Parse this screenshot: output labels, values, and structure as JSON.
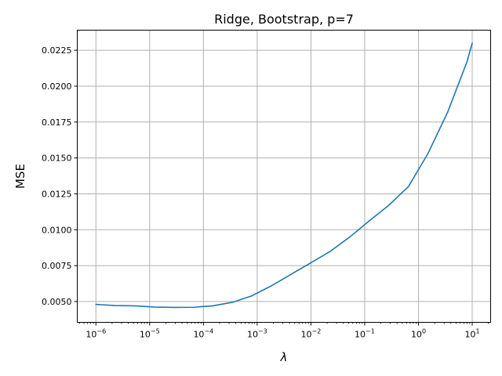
{
  "chart_data": {
    "type": "line",
    "title": "Ridge, Bootstrap, p=7",
    "xlabel": "λ",
    "ylabel": "MSE",
    "xscale": "log",
    "xlim": [
      4.5e-07,
      22
    ],
    "ylim": [
      0.00355,
      0.0239
    ],
    "grid": true,
    "x_ticks": [
      {
        "value": 1e-06,
        "base": "10",
        "exp": "−6"
      },
      {
        "value": 1e-05,
        "base": "10",
        "exp": "−5"
      },
      {
        "value": 0.0001,
        "base": "10",
        "exp": "−4"
      },
      {
        "value": 0.001,
        "base": "10",
        "exp": "−3"
      },
      {
        "value": 0.01,
        "base": "10",
        "exp": "−2"
      },
      {
        "value": 0.1,
        "base": "10",
        "exp": "−1"
      },
      {
        "value": 1,
        "base": "10",
        "exp": "0"
      },
      {
        "value": 10,
        "base": "10",
        "exp": "1"
      }
    ],
    "y_ticks": [
      {
        "value": 0.005,
        "label": "0.0050"
      },
      {
        "value": 0.0075,
        "label": "0.0075"
      },
      {
        "value": 0.01,
        "label": "0.0100"
      },
      {
        "value": 0.0125,
        "label": "0.0125"
      },
      {
        "value": 0.015,
        "label": "0.0150"
      },
      {
        "value": 0.0175,
        "label": "0.0175"
      },
      {
        "value": 0.02,
        "label": "0.0200"
      },
      {
        "value": 0.0225,
        "label": "0.0225"
      }
    ],
    "series": [
      {
        "color": "#1f77b4",
        "x": [
          1e-06,
          2.3e-06,
          5.3e-06,
          1.2e-05,
          2.8e-05,
          6.5e-05,
          0.00015,
          0.00035,
          0.0008,
          0.00185,
          0.0043,
          0.01,
          0.023,
          0.053,
          0.12,
          0.28,
          0.65,
          1.5,
          3.5,
          8.0,
          10
        ],
        "y": [
          0.0048,
          0.00472,
          0.0047,
          0.00462,
          0.00459,
          0.0046,
          0.0047,
          0.00495,
          0.0054,
          0.0061,
          0.0069,
          0.0077,
          0.0085,
          0.0095,
          0.0106,
          0.0117,
          0.013,
          0.0153,
          0.0182,
          0.0217,
          0.023
        ]
      }
    ]
  }
}
